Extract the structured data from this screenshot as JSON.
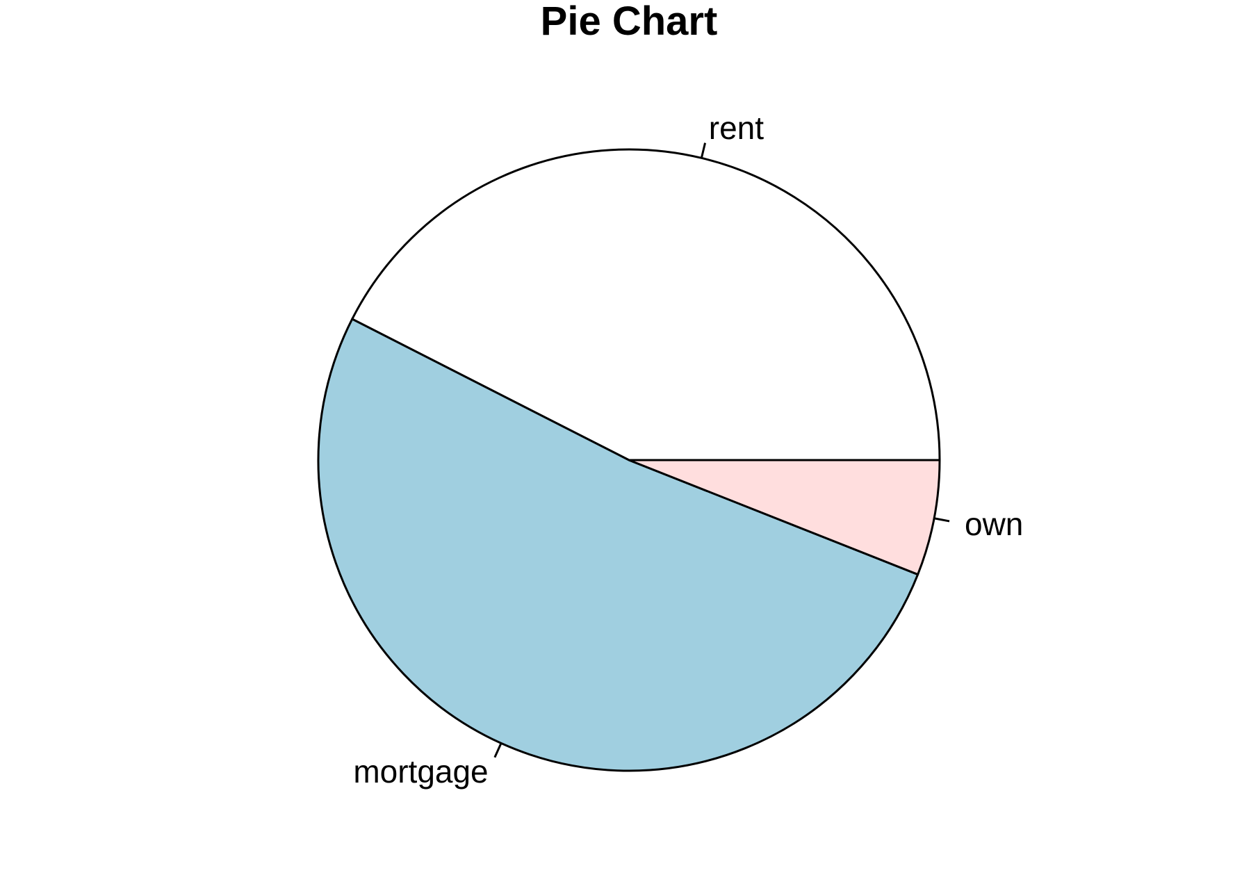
{
  "chart_data": {
    "type": "pie",
    "title": "Pie Chart",
    "start_angle_deg": 0,
    "direction": "counterclockwise",
    "slices": [
      {
        "label": "rent",
        "value": 0.425,
        "color": "#FFFFFF"
      },
      {
        "label": "mortgage",
        "value": 0.515,
        "color": "#A0CFE0"
      },
      {
        "label": "own",
        "value": 0.06,
        "color": "#FFDEDE"
      }
    ]
  }
}
